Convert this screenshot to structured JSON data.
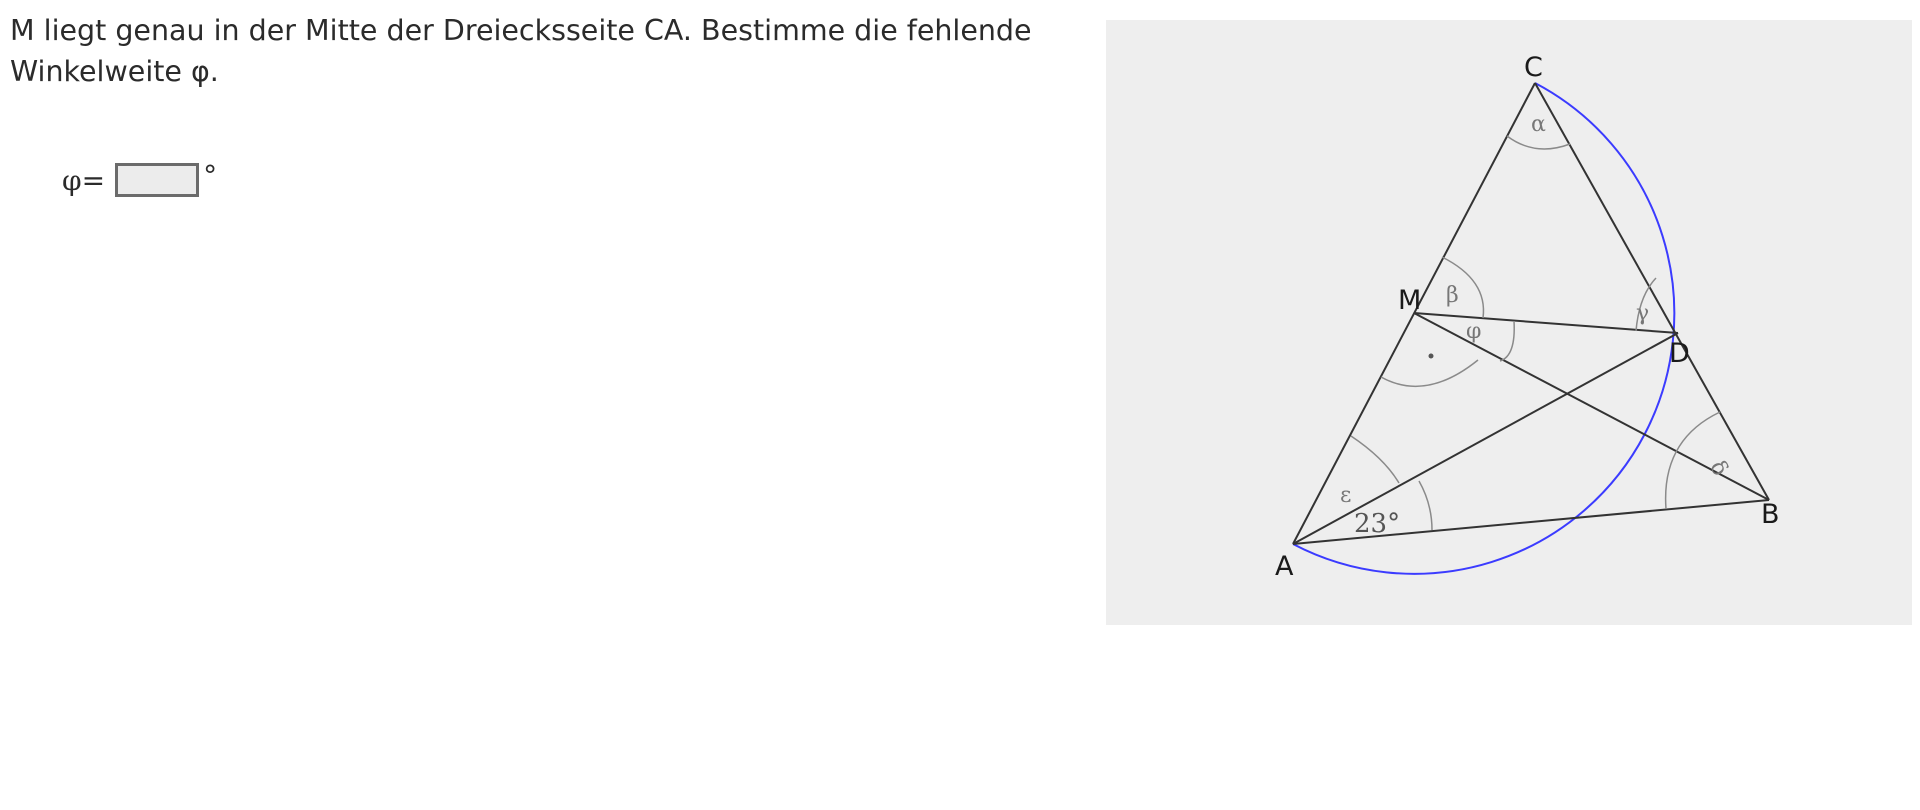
{
  "task": {
    "text": "M liegt genau in der Mitte der Dreiecksseite CA. Bestimme die fehlende Winkelweite φ."
  },
  "answer": {
    "label": "φ=",
    "value": "",
    "unit": "°"
  },
  "figure": {
    "points": {
      "A": "A",
      "B": "B",
      "C": "C",
      "M": "M",
      "D": "D"
    },
    "angles": {
      "alpha": "α",
      "beta": "β",
      "gamma": "γ",
      "delta": "δ",
      "epsilon": "ε",
      "phi": "φ",
      "given": "23°"
    },
    "colors": {
      "background": "#eeeeee",
      "lines": "#333333",
      "circle": "#3b3bff",
      "arcs": "#8a8a8a"
    }
  }
}
